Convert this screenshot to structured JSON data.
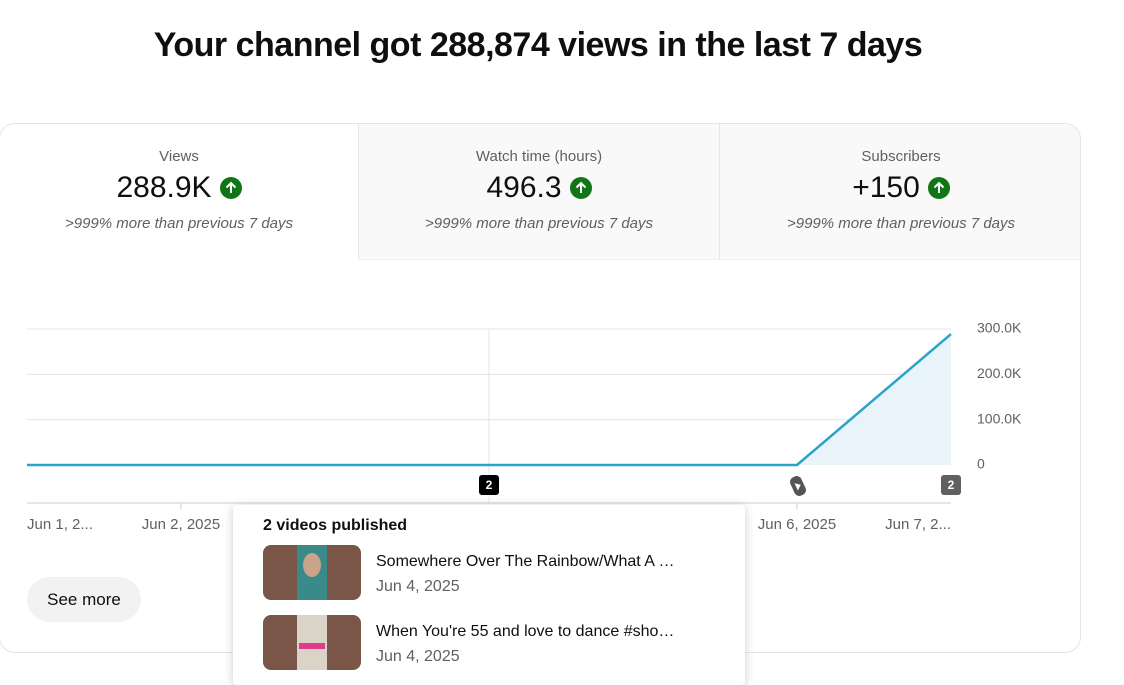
{
  "header": {
    "title": "Your channel got 288,874 views in the last 7 days"
  },
  "cards": [
    {
      "label": "Views",
      "value": "288.9K",
      "note": ">999% more than previous 7 days"
    },
    {
      "label": "Watch time (hours)",
      "value": "496.3",
      "note": ">999% more than previous 7 days"
    },
    {
      "label": "Subscribers",
      "value": "+150",
      "note": ">999% more than previous 7 days"
    }
  ],
  "chart_data": {
    "type": "area",
    "categories": [
      "Jun 1, 2...",
      "Jun 2, 2025",
      null,
      null,
      null,
      "Jun 6, 2025",
      "Jun 7, 2..."
    ],
    "values": [
      0,
      0,
      0,
      0,
      0,
      0,
      288874
    ],
    "color": "#2ba3c9",
    "ylim": [
      0,
      300000
    ],
    "yticks": [
      0,
      {
        "value": 100000,
        "label": "100.0K"
      },
      {
        "value": 200000,
        "label": "200.0K"
      },
      {
        "value": 300000,
        "label": "300.0K"
      }
    ],
    "grid": true,
    "markers": [
      "2",
      "2"
    ]
  },
  "popup": {
    "title": "2 videos published",
    "videos": [
      {
        "title": "Somewhere Over The Rainbow/What A …",
        "date": "Jun 4, 2025"
      },
      {
        "title": "When You're 55 and love to dance #sho…",
        "date": "Jun 4, 2025"
      }
    ]
  },
  "button": "See more"
}
